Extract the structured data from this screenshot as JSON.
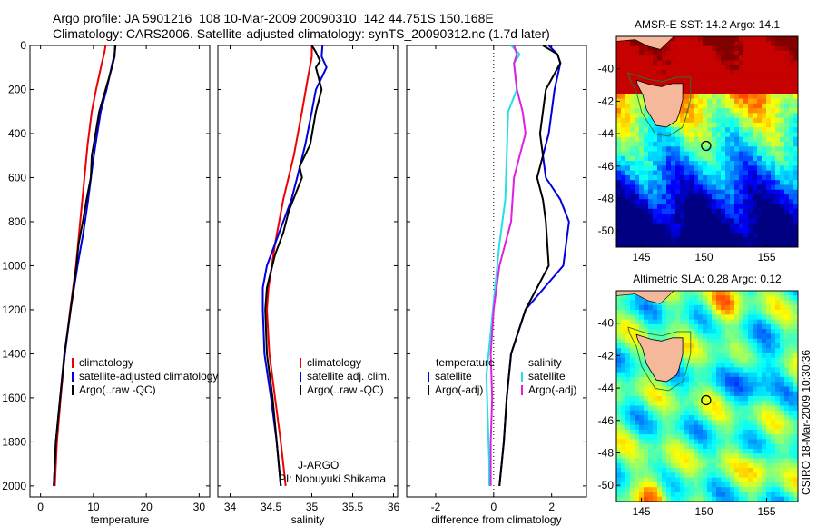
{
  "header": {
    "line1": "Argo profile: JA 5901216_108 10-Mar-2009 20090310_142 44.751S 150.168E",
    "line2": "Climatology: CARS2006. Satellite-adjusted climatology: synTS_20090312.nc (1.7d later)"
  },
  "colors": {
    "climatology": "#ee0000",
    "satellite": "#0000dd",
    "argo": "#000000",
    "satellite_diff": "#22e0e8",
    "argo_adj_diff": "#e020e0"
  },
  "credit": {
    "line1": "J-ARGO",
    "line2": "PI: Nobuyuki Shikama"
  },
  "timestamp": "CSIRO 18-Mar-2009 10:30:36",
  "chart_data": [
    {
      "id": "temperature",
      "type": "line",
      "xlabel": "temperature",
      "xlim": [
        -2,
        32
      ],
      "ylim": [
        0,
        2050
      ],
      "y_reversed": true,
      "xticks": [
        0,
        10,
        20,
        30
      ],
      "yticks": [
        0,
        200,
        400,
        600,
        800,
        1000,
        1200,
        1400,
        1600,
        1800,
        2000
      ],
      "legend": [
        "climatology",
        "satellite-adjusted climatology",
        "Argo(..raw -QC)"
      ],
      "series": [
        {
          "name": "climatology",
          "color_key": "climatology",
          "points": [
            [
              12.3,
              0
            ],
            [
              12.1,
              30
            ],
            [
              11.6,
              80
            ],
            [
              10.5,
              200
            ],
            [
              9.7,
              300
            ],
            [
              8.9,
              450
            ],
            [
              8.3,
              600
            ],
            [
              7.5,
              800
            ],
            [
              6.7,
              1000
            ],
            [
              5.6,
              1200
            ],
            [
              4.6,
              1400
            ],
            [
              3.8,
              1600
            ],
            [
              3.1,
              1800
            ],
            [
              2.7,
              2000
            ]
          ]
        },
        {
          "name": "satellite-adjusted climatology",
          "color_key": "satellite",
          "points": [
            [
              14.2,
              0
            ],
            [
              14.0,
              40
            ],
            [
              13.6,
              80
            ],
            [
              12.5,
              200
            ],
            [
              11.4,
              300
            ],
            [
              10.4,
              450
            ],
            [
              9.8,
              550
            ],
            [
              9.0,
              700
            ],
            [
              8.1,
              850
            ],
            [
              7.0,
              1000
            ],
            [
              5.7,
              1200
            ],
            [
              4.6,
              1400
            ],
            [
              3.7,
              1600
            ],
            [
              2.9,
              1800
            ],
            [
              2.5,
              2000
            ]
          ]
        },
        {
          "name": "Argo(..raw -QC)",
          "color_key": "argo",
          "points": [
            [
              14.1,
              0
            ],
            [
              14.0,
              50
            ],
            [
              13.5,
              100
            ],
            [
              12.3,
              200
            ],
            [
              11.1,
              300
            ],
            [
              10.4,
              400
            ],
            [
              9.7,
              500
            ],
            [
              9.5,
              600
            ],
            [
              8.7,
              700
            ],
            [
              8.0,
              800
            ],
            [
              7.2,
              900
            ],
            [
              6.8,
              1000
            ],
            [
              5.7,
              1200
            ],
            [
              4.5,
              1400
            ],
            [
              3.7,
              1600
            ],
            [
              2.9,
              1800
            ],
            [
              2.5,
              2000
            ]
          ]
        }
      ]
    },
    {
      "id": "salinity",
      "type": "line",
      "xlabel": "salinity",
      "xlim": [
        33.85,
        36.05
      ],
      "ylim": [
        0,
        2050
      ],
      "y_reversed": true,
      "xticks": [
        34,
        34.5,
        35,
        35.5,
        36
      ],
      "xticklabels": [
        "34",
        "34.5",
        "35",
        "35.5",
        "36"
      ],
      "yticks": [
        0,
        200,
        400,
        600,
        800,
        1000,
        1200,
        1400,
        1600,
        1800,
        2000
      ],
      "legend": [
        "climatology",
        "satellite adj. clim.",
        "Argo(..raw -QC)"
      ],
      "series": [
        {
          "name": "climatology",
          "color_key": "climatology",
          "points": [
            [
              35.0,
              0
            ],
            [
              35.0,
              50
            ],
            [
              34.95,
              150
            ],
            [
              34.88,
              300
            ],
            [
              34.78,
              500
            ],
            [
              34.65,
              700
            ],
            [
              34.55,
              900
            ],
            [
              34.47,
              1100
            ],
            [
              34.45,
              1200
            ],
            [
              34.48,
              1400
            ],
            [
              34.55,
              1600
            ],
            [
              34.62,
              1800
            ],
            [
              34.68,
              2000
            ]
          ]
        },
        {
          "name": "satellite adj. clim.",
          "color_key": "satellite",
          "points": [
            [
              35.13,
              0
            ],
            [
              35.12,
              50
            ],
            [
              35.18,
              100
            ],
            [
              35.05,
              200
            ],
            [
              35.0,
              300
            ],
            [
              34.92,
              450
            ],
            [
              34.82,
              600
            ],
            [
              34.75,
              700
            ],
            [
              34.6,
              850
            ],
            [
              34.45,
              1000
            ],
            [
              34.4,
              1100
            ],
            [
              34.4,
              1200
            ],
            [
              34.42,
              1400
            ],
            [
              34.5,
              1600
            ],
            [
              34.57,
              1800
            ],
            [
              34.62,
              2000
            ]
          ]
        },
        {
          "name": "Argo(..raw -QC)",
          "color_key": "argo",
          "points": [
            [
              35.0,
              0
            ],
            [
              35.05,
              30
            ],
            [
              35.1,
              70
            ],
            [
              35.05,
              100
            ],
            [
              35.12,
              200
            ],
            [
              35.05,
              300
            ],
            [
              34.98,
              450
            ],
            [
              34.85,
              550
            ],
            [
              34.88,
              600
            ],
            [
              34.72,
              750
            ],
            [
              34.65,
              850
            ],
            [
              34.55,
              950
            ],
            [
              34.45,
              1100
            ],
            [
              34.43,
              1200
            ],
            [
              34.45,
              1400
            ],
            [
              34.52,
              1600
            ],
            [
              34.57,
              1800
            ],
            [
              34.62,
              2000
            ]
          ]
        }
      ]
    },
    {
      "id": "difference",
      "type": "line",
      "xlabel": "difference from climatology",
      "xlim": [
        -3,
        3.2
      ],
      "ylim": [
        0,
        2050
      ],
      "y_reversed": true,
      "xticks": [
        -2,
        0,
        2
      ],
      "yticks": [
        0,
        200,
        400,
        600,
        800,
        1000,
        1200,
        1400,
        1600,
        1800,
        2000
      ],
      "zero_line": true,
      "legend_temperature": {
        "heading": "temperature",
        "items": [
          "satellite",
          "Argo(-adj)"
        ]
      },
      "legend_salinity": {
        "heading": "salinity",
        "items": [
          "satellite",
          "Argo(-adj)"
        ]
      },
      "series": [
        {
          "name": "temperature satellite",
          "color_key": "satellite",
          "points": [
            [
              1.9,
              0
            ],
            [
              2.2,
              40
            ],
            [
              2.3,
              80
            ],
            [
              2.1,
              200
            ],
            [
              1.9,
              400
            ],
            [
              1.7,
              500
            ],
            [
              1.8,
              600
            ],
            [
              2.3,
              700
            ],
            [
              2.6,
              800
            ],
            [
              2.4,
              1000
            ],
            [
              1.1,
              1200
            ],
            [
              0.6,
              1400
            ],
            [
              0.45,
              1600
            ],
            [
              0.35,
              1800
            ],
            [
              0.2,
              2000
            ]
          ]
        },
        {
          "name": "temperature Argo(-adj)",
          "color_key": "argo",
          "points": [
            [
              1.7,
              0
            ],
            [
              2.2,
              40
            ],
            [
              2.3,
              80
            ],
            [
              1.8,
              200
            ],
            [
              1.6,
              400
            ],
            [
              1.7,
              500
            ],
            [
              1.5,
              600
            ],
            [
              1.7,
              700
            ],
            [
              1.8,
              800
            ],
            [
              1.9,
              1000
            ],
            [
              1.1,
              1200
            ],
            [
              0.6,
              1400
            ],
            [
              0.45,
              1600
            ],
            [
              0.35,
              1800
            ],
            [
              0.2,
              2000
            ]
          ]
        },
        {
          "name": "salinity satellite",
          "color_key": "satellite_diff",
          "points": [
            [
              0.6,
              0
            ],
            [
              0.9,
              40
            ],
            [
              0.7,
              80
            ],
            [
              0.8,
              200
            ],
            [
              0.5,
              300
            ],
            [
              0.45,
              500
            ],
            [
              0.4,
              700
            ],
            [
              0.2,
              900
            ],
            [
              0.05,
              1100
            ],
            [
              -0.1,
              1300
            ],
            [
              -0.25,
              1500
            ],
            [
              -0.2,
              1700
            ],
            [
              -0.15,
              1900
            ],
            [
              -0.15,
              2000
            ]
          ]
        },
        {
          "name": "salinity Argo(-adj)",
          "color_key": "argo_adj_diff",
          "points": [
            [
              0.7,
              0
            ],
            [
              0.8,
              40
            ],
            [
              0.7,
              80
            ],
            [
              0.8,
              200
            ],
            [
              1.0,
              300
            ],
            [
              1.1,
              400
            ],
            [
              0.9,
              500
            ],
            [
              0.7,
              600
            ],
            [
              0.6,
              800
            ],
            [
              0.2,
              1000
            ],
            [
              0.0,
              1200
            ],
            [
              -0.1,
              1400
            ],
            [
              -0.05,
              1600
            ],
            [
              -0.1,
              1800
            ],
            [
              -0.1,
              2000
            ]
          ]
        }
      ]
    },
    {
      "id": "sst_map",
      "type": "heatmap",
      "title": "AMSR-E SST: 14.2 Argo: 14.1",
      "xlim": [
        143,
        157.5
      ],
      "ylim": [
        -51,
        -38
      ],
      "xticks": [
        145,
        150,
        155
      ],
      "yticks": [
        -40,
        -42,
        -44,
        -46,
        -48,
        -50
      ],
      "marker": {
        "lon": 150.168,
        "lat": -44.751
      }
    },
    {
      "id": "sla_map",
      "type": "heatmap",
      "title": "Altimetric SLA: 0.28 Argo: 0.12",
      "xlim": [
        143,
        157.5
      ],
      "ylim": [
        -51,
        -38
      ],
      "xticks": [
        145,
        150,
        155
      ],
      "yticks": [
        -40,
        -42,
        -44,
        -46,
        -48,
        -50
      ],
      "marker": {
        "lon": 150.168,
        "lat": -44.751
      }
    }
  ]
}
